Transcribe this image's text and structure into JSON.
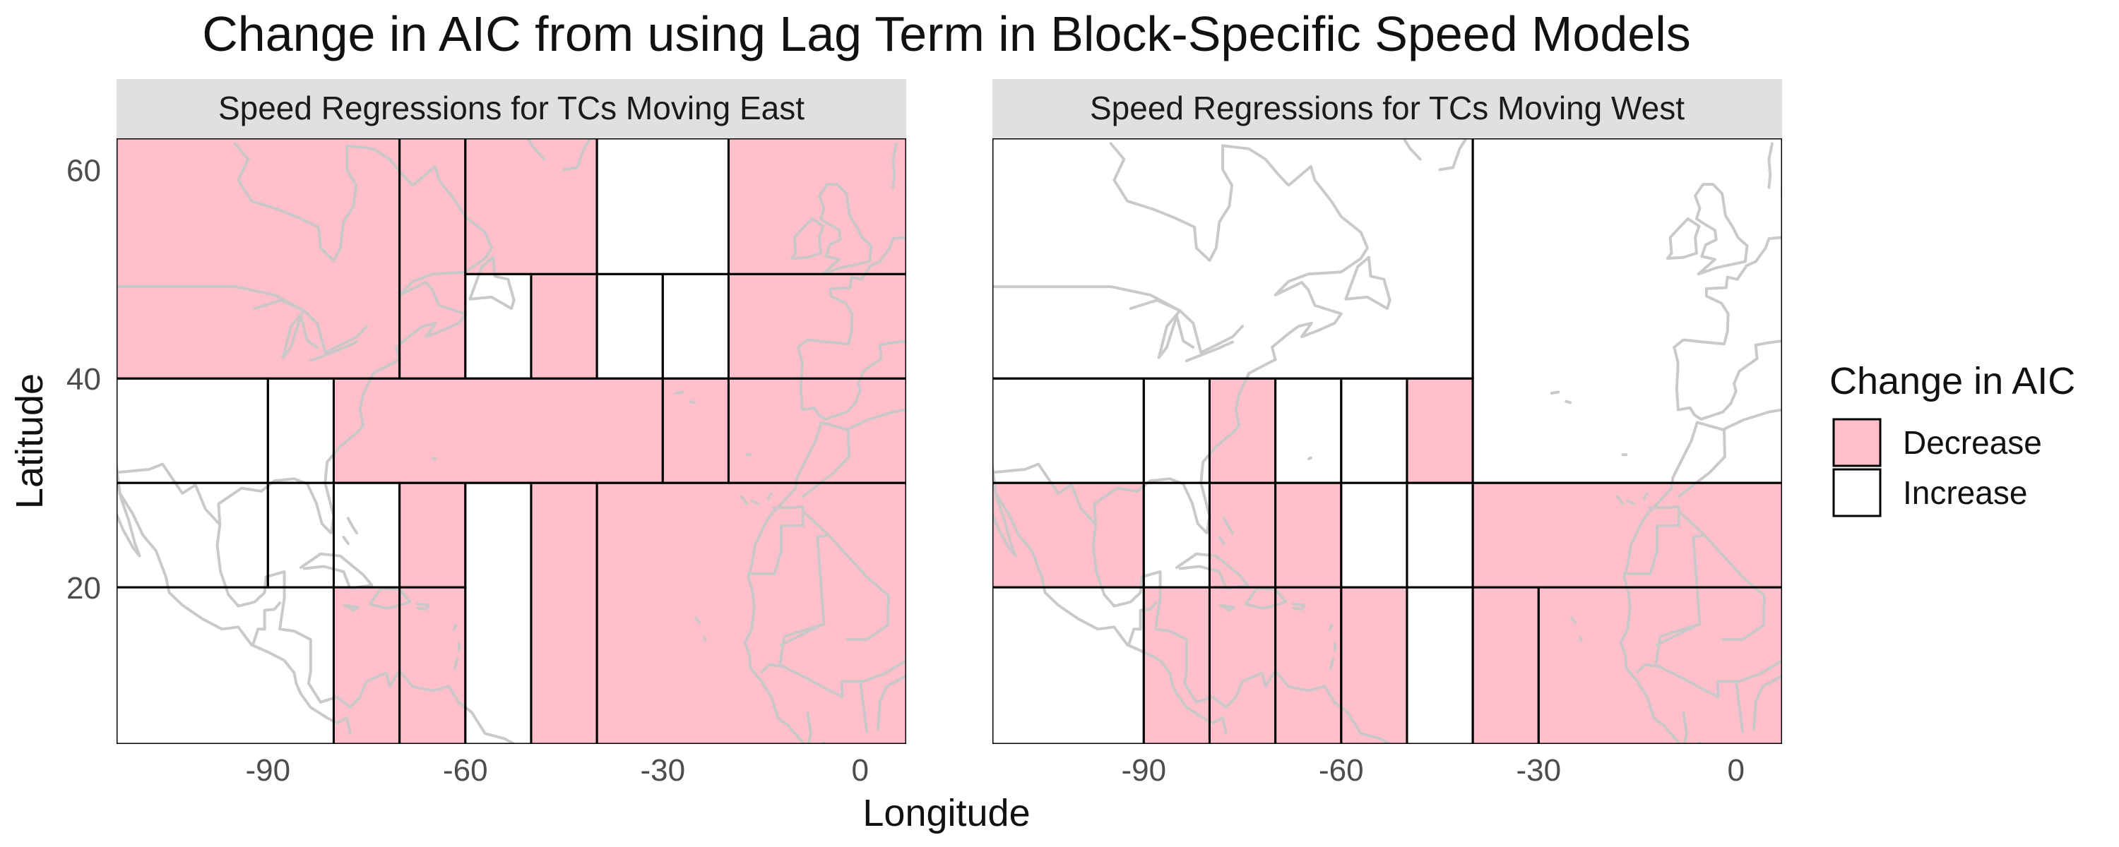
{
  "chart_data": {
    "type": "heatmap",
    "title": "Change in AIC from using Lag Term in Block-Specific Speed Models",
    "xlabel": "Longitude",
    "ylabel": "Latitude",
    "xlim": [
      -113,
      7
    ],
    "ylim": [
      5,
      63
    ],
    "x_ticks": [
      -90,
      -60,
      -30,
      0
    ],
    "y_ticks": [
      20,
      40,
      60
    ],
    "x_tick_labels": [
      "-90",
      "-60",
      "-30",
      "0"
    ],
    "y_tick_labels": [
      "20",
      "40",
      "60"
    ],
    "grid": false,
    "basemap": "coastlines of North America, Europe and Africa (grey)",
    "colors": {
      "Decrease": "#FFC0CB",
      "Increase": "#FFFFFF",
      "strip_background": "#E0E0E0",
      "coastline": "#C8C8C8",
      "block_border": "#000000"
    },
    "legend": {
      "title": "Change in AIC",
      "position": "right",
      "entries": [
        "Decrease",
        "Increase"
      ]
    },
    "panels": [
      {
        "strip": "Speed Regressions for TCs Moving East",
        "blocks": [
          {
            "lon": [
              -113,
              -70
            ],
            "lat": [
              40,
              63
            ],
            "change": "Decrease"
          },
          {
            "lon": [
              -70,
              -60
            ],
            "lat": [
              40,
              63
            ],
            "change": "Decrease"
          },
          {
            "lon": [
              -60,
              -40
            ],
            "lat": [
              50,
              63
            ],
            "change": "Decrease"
          },
          {
            "lon": [
              -40,
              -20
            ],
            "lat": [
              50,
              63
            ],
            "change": "Increase"
          },
          {
            "lon": [
              -20,
              7
            ],
            "lat": [
              50,
              63
            ],
            "change": "Decrease"
          },
          {
            "lon": [
              -60,
              -50
            ],
            "lat": [
              40,
              50
            ],
            "change": "Increase"
          },
          {
            "lon": [
              -50,
              -40
            ],
            "lat": [
              40,
              50
            ],
            "change": "Decrease"
          },
          {
            "lon": [
              -40,
              -30
            ],
            "lat": [
              40,
              50
            ],
            "change": "Increase"
          },
          {
            "lon": [
              -30,
              -20
            ],
            "lat": [
              40,
              50
            ],
            "change": "Increase"
          },
          {
            "lon": [
              -20,
              7
            ],
            "lat": [
              40,
              50
            ],
            "change": "Decrease"
          },
          {
            "lon": [
              -113,
              -90
            ],
            "lat": [
              30,
              40
            ],
            "change": "Increase"
          },
          {
            "lon": [
              -90,
              -80
            ],
            "lat": [
              30,
              40
            ],
            "change": "Increase"
          },
          {
            "lon": [
              -80,
              -30
            ],
            "lat": [
              30,
              40
            ],
            "change": "Decrease"
          },
          {
            "lon": [
              -30,
              -20
            ],
            "lat": [
              30,
              40
            ],
            "change": "Decrease"
          },
          {
            "lon": [
              -20,
              7
            ],
            "lat": [
              30,
              40
            ],
            "change": "Decrease"
          },
          {
            "lon": [
              -113,
              -90
            ],
            "lat": [
              20,
              30
            ],
            "change": "Increase"
          },
          {
            "lon": [
              -90,
              -80
            ],
            "lat": [
              20,
              30
            ],
            "change": "Increase"
          },
          {
            "lon": [
              -80,
              -70
            ],
            "lat": [
              20,
              30
            ],
            "change": "Increase"
          },
          {
            "lon": [
              -70,
              -60
            ],
            "lat": [
              20,
              30
            ],
            "change": "Decrease"
          },
          {
            "lon": [
              -113,
              -80
            ],
            "lat": [
              5,
              20
            ],
            "change": "Increase"
          },
          {
            "lon": [
              -80,
              -70
            ],
            "lat": [
              5,
              20
            ],
            "change": "Decrease"
          },
          {
            "lon": [
              -70,
              -60
            ],
            "lat": [
              5,
              20
            ],
            "change": "Decrease"
          },
          {
            "lon": [
              -60,
              -50
            ],
            "lat": [
              5,
              30
            ],
            "change": "Increase"
          },
          {
            "lon": [
              -50,
              -40
            ],
            "lat": [
              5,
              30
            ],
            "change": "Decrease"
          },
          {
            "lon": [
              -40,
              7
            ],
            "lat": [
              5,
              30
            ],
            "change": "Decrease"
          }
        ]
      },
      {
        "strip": "Speed Regressions for TCs Moving West",
        "blocks": [
          {
            "lon": [
              -113,
              -40
            ],
            "lat": [
              40,
              63
            ],
            "change": "Increase"
          },
          {
            "lon": [
              -40,
              7
            ],
            "lat": [
              30,
              63
            ],
            "change": "Increase"
          },
          {
            "lon": [
              -113,
              -90
            ],
            "lat": [
              30,
              40
            ],
            "change": "Increase"
          },
          {
            "lon": [
              -90,
              -80
            ],
            "lat": [
              30,
              40
            ],
            "change": "Increase"
          },
          {
            "lon": [
              -80,
              -70
            ],
            "lat": [
              30,
              40
            ],
            "change": "Decrease"
          },
          {
            "lon": [
              -70,
              -60
            ],
            "lat": [
              30,
              40
            ],
            "change": "Increase"
          },
          {
            "lon": [
              -60,
              -50
            ],
            "lat": [
              30,
              40
            ],
            "change": "Increase"
          },
          {
            "lon": [
              -50,
              -40
            ],
            "lat": [
              30,
              40
            ],
            "change": "Decrease"
          },
          {
            "lon": [
              -113,
              -90
            ],
            "lat": [
              20,
              30
            ],
            "change": "Decrease"
          },
          {
            "lon": [
              -90,
              -80
            ],
            "lat": [
              20,
              30
            ],
            "change": "Increase"
          },
          {
            "lon": [
              -80,
              -70
            ],
            "lat": [
              20,
              30
            ],
            "change": "Decrease"
          },
          {
            "lon": [
              -70,
              -60
            ],
            "lat": [
              20,
              30
            ],
            "change": "Decrease"
          },
          {
            "lon": [
              -60,
              -50
            ],
            "lat": [
              20,
              30
            ],
            "change": "Increase"
          },
          {
            "lon": [
              -50,
              -40
            ],
            "lat": [
              20,
              30
            ],
            "change": "Increase"
          },
          {
            "lon": [
              -40,
              7
            ],
            "lat": [
              20,
              30
            ],
            "change": "Decrease"
          },
          {
            "lon": [
              -113,
              -90
            ],
            "lat": [
              5,
              20
            ],
            "change": "Increase"
          },
          {
            "lon": [
              -90,
              -80
            ],
            "lat": [
              5,
              20
            ],
            "change": "Decrease"
          },
          {
            "lon": [
              -80,
              -70
            ],
            "lat": [
              5,
              20
            ],
            "change": "Decrease"
          },
          {
            "lon": [
              -70,
              -60
            ],
            "lat": [
              5,
              20
            ],
            "change": "Decrease"
          },
          {
            "lon": [
              -60,
              -50
            ],
            "lat": [
              5,
              20
            ],
            "change": "Decrease"
          },
          {
            "lon": [
              -50,
              -40
            ],
            "lat": [
              5,
              20
            ],
            "change": "Increase"
          },
          {
            "lon": [
              -40,
              -30
            ],
            "lat": [
              5,
              20
            ],
            "change": "Decrease"
          },
          {
            "lon": [
              -30,
              7
            ],
            "lat": [
              5,
              20
            ],
            "change": "Decrease"
          }
        ]
      }
    ]
  }
}
